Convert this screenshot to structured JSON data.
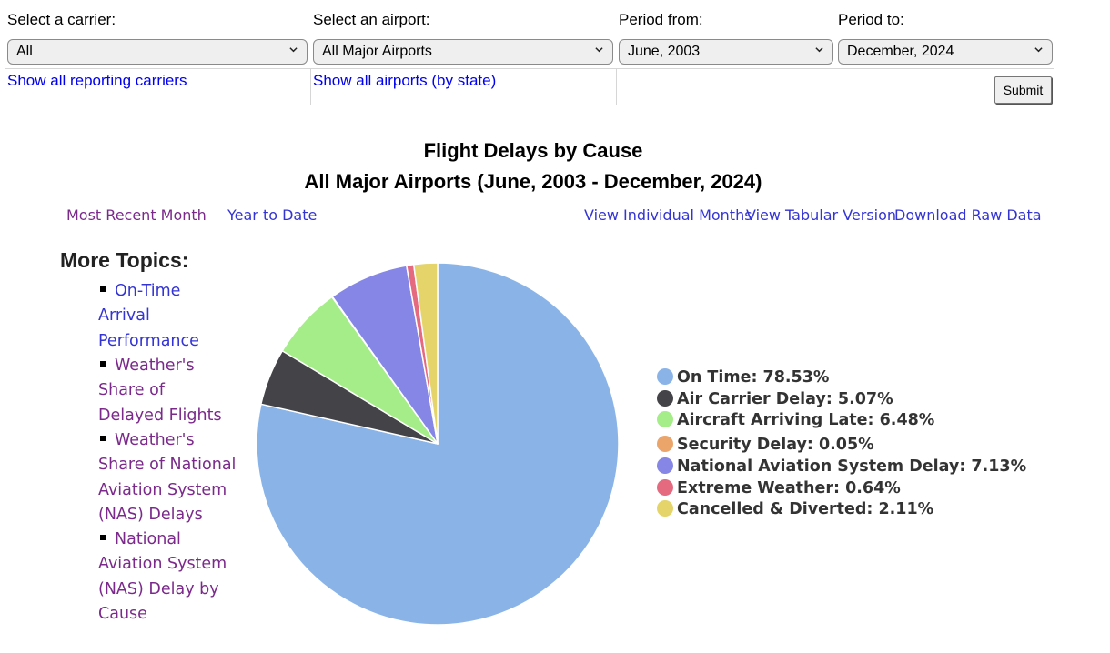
{
  "filters": {
    "carrier": {
      "label": "Select a carrier:",
      "value": "All",
      "link": "Show all reporting carriers"
    },
    "airport": {
      "label": "Select an airport:",
      "value": "All Major Airports",
      "link": "Show all airports (by state)"
    },
    "period_from": {
      "label": "Period from:",
      "value": "June, 2003"
    },
    "period_to": {
      "label": "Period to:",
      "value": "December, 2024"
    },
    "submit_label": "Submit"
  },
  "nav": {
    "most_recent": "Most Recent Month",
    "year_to_date": "Year to Date",
    "individual_months": "View Individual Months",
    "tabular": "View Tabular Version",
    "download": "Download Raw Data"
  },
  "topics": {
    "heading": "More Topics:",
    "items": [
      "On-Time Arrival Performance",
      "Weather's Share of Delayed Flights",
      "Weather's Share of National Aviation System (NAS) Delays",
      "National Aviation System (NAS) Delay by Cause"
    ]
  },
  "chart_data": {
    "type": "pie",
    "title": "Flight Delays by Cause",
    "subtitle": "All Major Airports (June, 2003 - December, 2024)",
    "legend_position": "right",
    "slices": [
      {
        "label": "On Time",
        "value": 78.53,
        "text": "On Time: 78.53%",
        "color": "#8ab4e8"
      },
      {
        "label": "Air Carrier Delay",
        "value": 5.07,
        "text": "Air Carrier Delay: 5.07%",
        "color": "#434348"
      },
      {
        "label": "Aircraft Arriving Late",
        "value": 6.48,
        "text": "Aircraft Arriving Late: 6.48%",
        "color": "#a4ed88"
      },
      {
        "label": "Security Delay",
        "value": 0.05,
        "text": "Security Delay: 0.05%",
        "color": "#eba56a"
      },
      {
        "label": "National Aviation System Delay",
        "value": 7.13,
        "text": "National Aviation System Delay: 7.13%",
        "color": "#8586e6"
      },
      {
        "label": "Extreme Weather",
        "value": 0.64,
        "text": "Extreme Weather: 0.64%",
        "color": "#e56a80"
      },
      {
        "label": "Cancelled & Diverted",
        "value": 2.11,
        "text": "Cancelled & Diverted: 2.11%",
        "color": "#e4d46a"
      }
    ]
  }
}
